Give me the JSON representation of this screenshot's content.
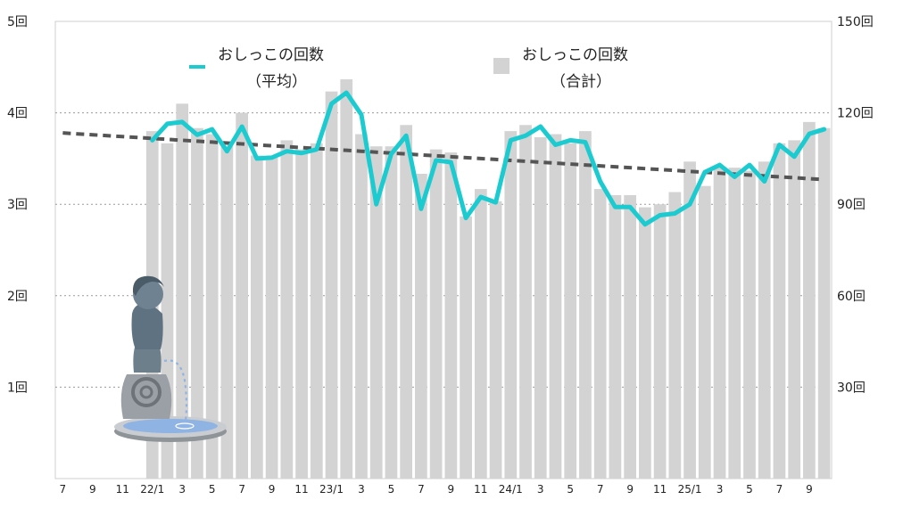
{
  "chart_data": {
    "type": "bar",
    "categories": [
      "7",
      "8",
      "9",
      "10",
      "11",
      "12",
      "22/1",
      "2",
      "3",
      "4",
      "5",
      "6",
      "7",
      "8",
      "9",
      "10",
      "11",
      "12",
      "23/1",
      "2",
      "3",
      "4",
      "5",
      "6",
      "7",
      "8",
      "9",
      "10",
      "11",
      "12",
      "24/1",
      "2",
      "3",
      "4",
      "5",
      "6",
      "7",
      "8",
      "9",
      "10",
      "11",
      "12",
      "25/1",
      "2",
      "3",
      "4",
      "5",
      "6",
      "7",
      "8",
      "9",
      "10"
    ],
    "x_tick_labels": [
      "7",
      "9",
      "11",
      "22/1",
      "3",
      "5",
      "7",
      "9",
      "11",
      "23/1",
      "3",
      "5",
      "7",
      "9",
      "11",
      "24/1",
      "3",
      "5",
      "7",
      "9",
      "11",
      "25/1",
      "3",
      "5",
      "7",
      "9"
    ],
    "series": [
      {
        "name": "おしっこの回数（合計）",
        "axis": "right",
        "type": "bar",
        "color": "#d3d3d3",
        "values": [
          null,
          null,
          null,
          null,
          null,
          null,
          114,
          110,
          123,
          115,
          113,
          109,
          120,
          106,
          106,
          111,
          108,
          110,
          127,
          131,
          113,
          109,
          109,
          116,
          100,
          108,
          107,
          86,
          95,
          91,
          114,
          116,
          112,
          113,
          110,
          114,
          95,
          93,
          93,
          89,
          90,
          94,
          104,
          96,
          102,
          102,
          101,
          104,
          110,
          111,
          117,
          115
        ]
      },
      {
        "name": "おしっこの回数（平均）",
        "axis": "left",
        "type": "line",
        "color": "#1ccbd0",
        "values": [
          null,
          null,
          null,
          null,
          null,
          null,
          3.7,
          3.88,
          3.9,
          3.76,
          3.82,
          3.58,
          3.85,
          3.5,
          3.51,
          3.58,
          3.56,
          3.6,
          4.1,
          4.22,
          3.98,
          3.0,
          3.55,
          3.75,
          2.95,
          3.48,
          3.46,
          2.85,
          3.08,
          3.02,
          3.7,
          3.75,
          3.85,
          3.65,
          3.7,
          3.68,
          3.25,
          2.97,
          2.97,
          2.78,
          2.88,
          2.9,
          3.0,
          3.35,
          3.43,
          3.3,
          3.43,
          3.25,
          3.65,
          3.52,
          3.77,
          3.82
        ]
      },
      {
        "name": "trend",
        "axis": "left",
        "type": "line-dashed",
        "color": "#555555",
        "values": [
          3.78,
          3.77,
          3.76,
          3.75,
          3.74,
          3.73,
          3.72,
          3.71,
          3.7,
          3.69,
          3.68,
          3.67,
          3.66,
          3.65,
          3.64,
          3.63,
          3.62,
          3.61,
          3.6,
          3.59,
          3.58,
          3.57,
          3.56,
          3.55,
          3.54,
          3.53,
          3.52,
          3.51,
          3.5,
          3.49,
          3.48,
          3.47,
          3.46,
          3.45,
          3.44,
          3.43,
          3.42,
          3.41,
          3.4,
          3.39,
          3.38,
          3.37,
          3.36,
          3.35,
          3.34,
          3.33,
          3.32,
          3.31,
          3.3,
          3.29,
          3.28,
          3.27
        ]
      }
    ],
    "y_left": {
      "ylim": [
        0,
        5
      ],
      "ticks": [
        "1回",
        "2回",
        "3回",
        "4回",
        "5回"
      ]
    },
    "y_right": {
      "ylim": [
        0,
        150
      ],
      "ticks": [
        "30回",
        "60回",
        "90回",
        "120回",
        "150回"
      ]
    },
    "legend": [
      {
        "line1": "おしっこの回数",
        "line2": "（平均）",
        "color": "#1ccbd0",
        "kind": "line"
      },
      {
        "line1": "おしっこの回数",
        "line2": "（合計）",
        "color": "#d3d3d3",
        "kind": "square"
      }
    ],
    "grid": "dotted-horizontal",
    "legend_placement": "top"
  }
}
